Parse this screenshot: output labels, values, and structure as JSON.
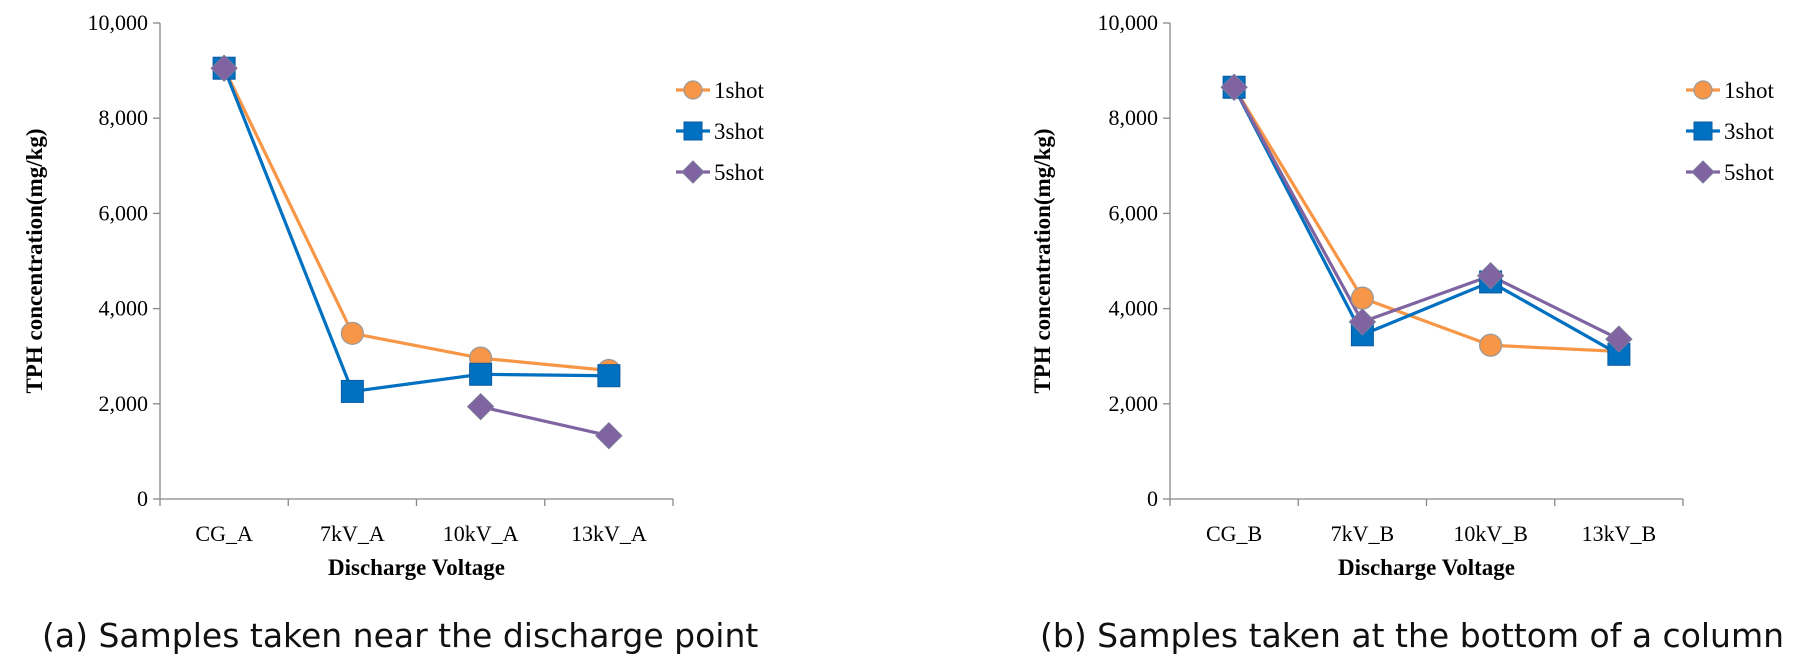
{
  "chart_data": [
    {
      "type": "line",
      "caption": "(a) Samples taken near the discharge point",
      "categories": [
        "CG_A",
        "7kV_A",
        "10kV_A",
        "13kV_A"
      ],
      "xlabel": "Discharge Voltage",
      "ylabel": "TPH concentration(mg/kg)",
      "ylim": [
        0,
        10000
      ],
      "yticks": [
        0,
        2000,
        4000,
        6000,
        8000,
        10000
      ],
      "ytick_labels": [
        "0",
        "2,000",
        "4,000",
        "6,000",
        "8,000",
        "10,000"
      ],
      "grid": false,
      "legend_position": "top-right",
      "series": [
        {
          "name": "1shot",
          "color": "#F79646",
          "marker": "circle",
          "values": [
            9050,
            3480,
            2960,
            2700
          ]
        },
        {
          "name": "3shot",
          "color": "#0070C0",
          "marker": "square",
          "values": [
            9050,
            2260,
            2620,
            2590
          ]
        },
        {
          "name": "5shot",
          "color": "#8064A2",
          "marker": "diamond",
          "values": [
            9050,
            null,
            1940,
            1330
          ]
        }
      ]
    },
    {
      "type": "line",
      "caption": "(b) Samples taken at the bottom of a column",
      "categories": [
        "CG_B",
        "7kV_B",
        "10kV_B",
        "13kV_B"
      ],
      "xlabel": "Discharge Voltage",
      "ylabel": "TPH concentration(mg/kg)",
      "ylim": [
        0,
        10000
      ],
      "yticks": [
        0,
        2000,
        4000,
        6000,
        8000,
        10000
      ],
      "ytick_labels": [
        "0",
        "2,000",
        "4,000",
        "6,000",
        "8,000",
        "10,000"
      ],
      "grid": false,
      "legend_position": "top-right",
      "series": [
        {
          "name": "1shot",
          "color": "#F79646",
          "marker": "circle",
          "values": [
            8650,
            4220,
            3230,
            3100
          ]
        },
        {
          "name": "3shot",
          "color": "#0070C0",
          "marker": "square",
          "values": [
            8650,
            3450,
            4560,
            3040
          ]
        },
        {
          "name": "5shot",
          "color": "#8064A2",
          "marker": "diamond",
          "values": [
            8650,
            3720,
            4690,
            3360
          ]
        }
      ]
    }
  ]
}
